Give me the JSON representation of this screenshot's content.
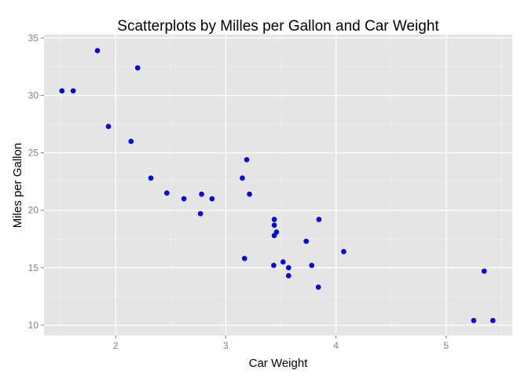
{
  "chart_data": {
    "type": "scatter",
    "title": "Scatterplots by Milles per Gallon and  Car Weight",
    "xlabel": "Car Weight",
    "ylabel": "Miles per Gallon",
    "xlim": [
      1.35,
      5.6
    ],
    "ylim": [
      9.1,
      35.3
    ],
    "x_ticks": [
      2,
      3,
      4,
      5
    ],
    "x_tick_labels": [
      "2",
      "3",
      "4",
      "5"
    ],
    "y_ticks": [
      10,
      15,
      20,
      25,
      30,
      35
    ],
    "y_tick_labels": [
      "10",
      "15",
      "20",
      "25",
      "30",
      "35"
    ],
    "grid": true,
    "legend": "none",
    "colors": {
      "panel_background": "#e5e5e5",
      "grid_major": "#ffffff",
      "grid_minor": "#f2f2f2",
      "point": "#0000ff",
      "point_outline": "#000080"
    },
    "points": [
      {
        "x": 2.62,
        "y": 21.0
      },
      {
        "x": 2.875,
        "y": 21.0
      },
      {
        "x": 2.32,
        "y": 22.8
      },
      {
        "x": 3.215,
        "y": 21.4
      },
      {
        "x": 3.44,
        "y": 18.7
      },
      {
        "x": 3.46,
        "y": 18.1
      },
      {
        "x": 3.57,
        "y": 14.3
      },
      {
        "x": 3.19,
        "y": 24.4
      },
      {
        "x": 3.15,
        "y": 22.8
      },
      {
        "x": 3.44,
        "y": 19.2
      },
      {
        "x": 3.44,
        "y": 17.8
      },
      {
        "x": 4.07,
        "y": 16.4
      },
      {
        "x": 3.73,
        "y": 17.3
      },
      {
        "x": 3.78,
        "y": 15.2
      },
      {
        "x": 5.25,
        "y": 10.4
      },
      {
        "x": 5.424,
        "y": 10.4
      },
      {
        "x": 5.345,
        "y": 14.7
      },
      {
        "x": 2.2,
        "y": 32.4
      },
      {
        "x": 1.615,
        "y": 30.4
      },
      {
        "x": 1.835,
        "y": 33.9
      },
      {
        "x": 2.465,
        "y": 21.5
      },
      {
        "x": 3.52,
        "y": 15.5
      },
      {
        "x": 3.435,
        "y": 15.2
      },
      {
        "x": 3.84,
        "y": 13.3
      },
      {
        "x": 3.845,
        "y": 19.2
      },
      {
        "x": 1.935,
        "y": 27.3
      },
      {
        "x": 2.14,
        "y": 26.0
      },
      {
        "x": 1.513,
        "y": 30.4
      },
      {
        "x": 3.17,
        "y": 15.8
      },
      {
        "x": 2.77,
        "y": 19.7
      },
      {
        "x": 3.57,
        "y": 15.0
      },
      {
        "x": 2.78,
        "y": 21.4
      }
    ]
  }
}
